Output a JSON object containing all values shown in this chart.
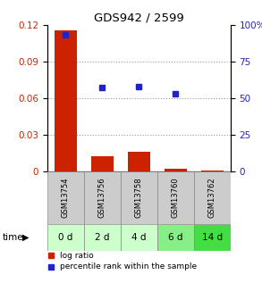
{
  "title": "GDS942 / 2599",
  "samples": [
    "GSM13754",
    "GSM13756",
    "GSM13758",
    "GSM13760",
    "GSM13762"
  ],
  "time_labels": [
    "0 d",
    "2 d",
    "4 d",
    "6 d",
    "14 d"
  ],
  "log_ratio": [
    0.115,
    0.012,
    0.016,
    0.002,
    0.001
  ],
  "percentile_rank": [
    93,
    57,
    58,
    53,
    0
  ],
  "bar_color": "#cc2200",
  "dot_color": "#2222cc",
  "left_ylim": [
    0,
    0.12
  ],
  "right_ylim": [
    0,
    100
  ],
  "left_yticks": [
    0,
    0.03,
    0.06,
    0.09,
    0.12
  ],
  "right_yticks": [
    0,
    25,
    50,
    75,
    100
  ],
  "right_yticklabels": [
    "0",
    "25",
    "50",
    "75",
    "100%"
  ],
  "grid_color": "#888888",
  "sample_box_color": "#cccccc",
  "time_box_colors": [
    "#ccffcc",
    "#ccffcc",
    "#ccffcc",
    "#88ee88",
    "#44dd44"
  ],
  "bg_color": "#ffffff",
  "legend_bar_label": "log ratio",
  "legend_dot_label": "percentile rank within the sample"
}
